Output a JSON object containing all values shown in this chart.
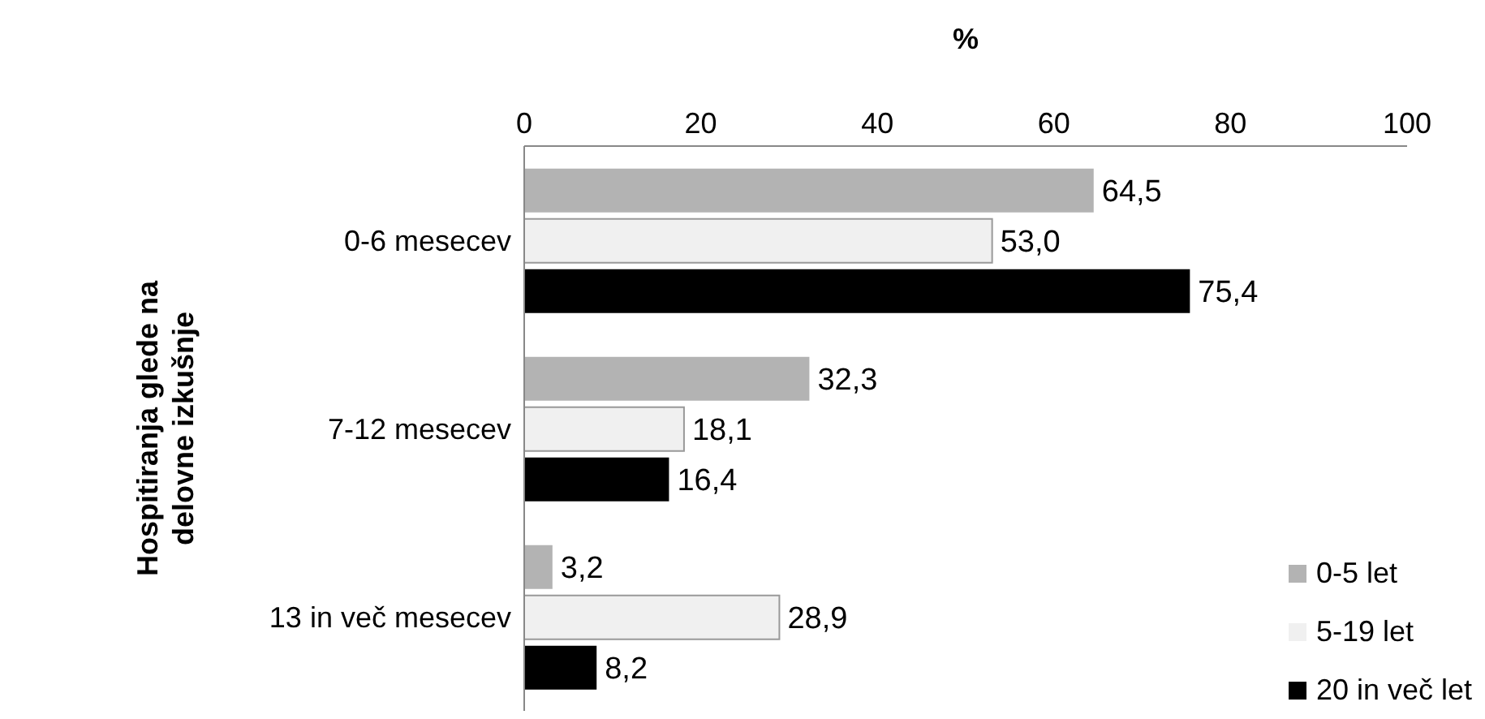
{
  "chart_data": {
    "type": "bar",
    "orientation": "horizontal",
    "xlabel": "%",
    "ylabel": "Hospitiranja glede na delovne izkušnje",
    "categories": [
      "0-6 mesecev",
      "7-12 mesecev",
      "13 in več mesecev"
    ],
    "series": [
      {
        "name": "0-5 let",
        "color": "#b3b3b3",
        "values": [
          64.5,
          32.3,
          3.2
        ],
        "value_labels": [
          "64,5",
          "32,3",
          "3,2"
        ]
      },
      {
        "name": "5-19 let",
        "color": "#f0f0f0",
        "values": [
          53.0,
          18.1,
          28.9
        ],
        "value_labels": [
          "53,0",
          "18,1",
          "28,9"
        ]
      },
      {
        "name": "20 in več let",
        "color": "#000000",
        "values": [
          75.4,
          16.4,
          8.2
        ],
        "value_labels": [
          "75,4",
          "16,4",
          "8,2"
        ]
      }
    ],
    "xlim": [
      0,
      100
    ],
    "xticks": [
      0,
      20,
      40,
      60,
      80,
      100
    ],
    "grid": false,
    "legend": "bottom right"
  }
}
